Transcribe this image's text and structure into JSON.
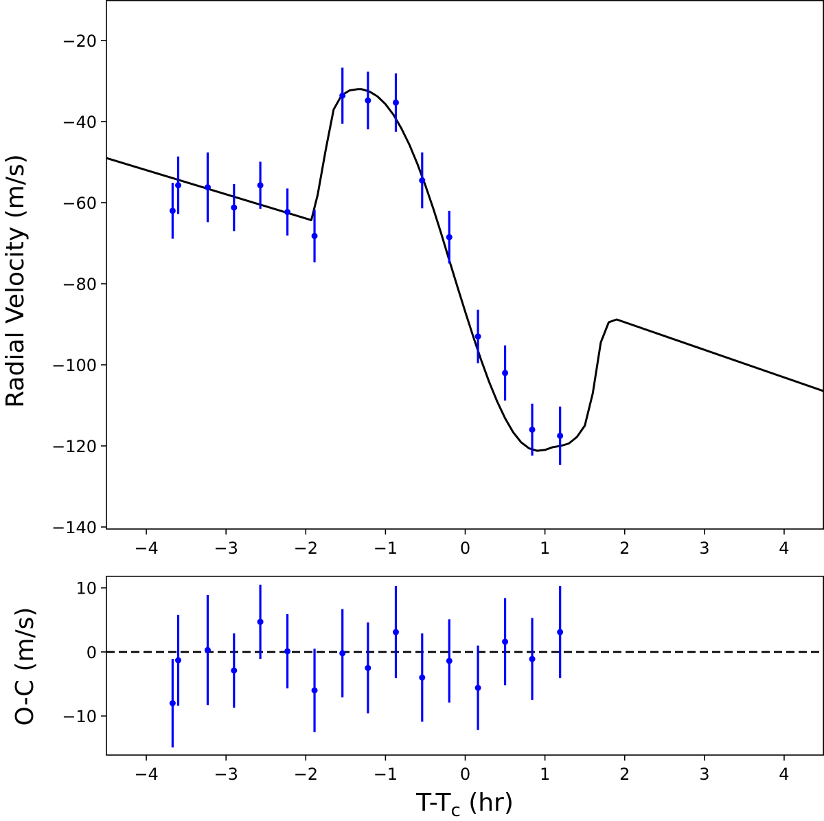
{
  "chart_data": [
    {
      "type": "scatter",
      "panel": "top",
      "ylabel": "Radial Velocity (m/s)",
      "xlim": [
        -4.5,
        4.5
      ],
      "ylim": [
        -140.5,
        -10
      ],
      "grid": false,
      "x_ticks": [
        -4,
        -3,
        -2,
        -1,
        0,
        1,
        2,
        3,
        4
      ],
      "x_tick_labels": [
        "−4",
        "−3",
        "−2",
        "−1",
        "0",
        "1",
        "2",
        "3",
        "4"
      ],
      "y_ticks": [
        -140,
        -120,
        -100,
        -80,
        -60,
        -40,
        -20
      ],
      "y_tick_labels": [
        "−140",
        "−120",
        "−100",
        "−80",
        "−60",
        "−40",
        "−20"
      ],
      "colors": {
        "points": "#0000ff",
        "model": "#000000"
      },
      "series": [
        {
          "kind": "errorbar-points",
          "x": [
            -3.67,
            -3.6,
            -3.23,
            -2.9,
            -2.57,
            -2.23,
            -1.89,
            -1.54,
            -1.22,
            -0.87,
            -0.54,
            -0.2,
            0.16,
            0.5,
            0.84,
            1.19
          ],
          "y": [
            -62.0,
            -55.7,
            -56.2,
            -61.2,
            -55.7,
            -62.3,
            -68.2,
            -33.6,
            -34.8,
            -35.3,
            -54.5,
            -68.5,
            -93.0,
            -102.0,
            -116.0,
            -117.5
          ],
          "yerr": [
            6.9,
            7.1,
            8.6,
            5.8,
            5.8,
            5.8,
            6.5,
            6.9,
            7.1,
            7.2,
            6.9,
            6.5,
            6.6,
            6.8,
            6.4,
            7.2
          ]
        },
        {
          "kind": "model-line",
          "x": [
            -4.5,
            -1.93,
            -1.85,
            -1.75,
            -1.65,
            -1.55,
            -1.45,
            -1.35,
            -1.3,
            -1.2,
            -1.1,
            -1.0,
            -0.9,
            -0.8,
            -0.7,
            -0.6,
            -0.5,
            -0.4,
            -0.3,
            -0.2,
            -0.1,
            0.0,
            0.1,
            0.2,
            0.3,
            0.4,
            0.5,
            0.6,
            0.7,
            0.8,
            0.9,
            1.0,
            1.1,
            1.2,
            1.3,
            1.4,
            1.5,
            1.6,
            1.7,
            1.8,
            1.9,
            4.5
          ],
          "y": [
            -49.0,
            -64.3,
            -58.0,
            -47.0,
            -37.0,
            -33.5,
            -32.3,
            -32.0,
            -32.0,
            -32.6,
            -33.8,
            -35.7,
            -38.3,
            -41.7,
            -45.7,
            -50.4,
            -55.7,
            -61.5,
            -67.7,
            -74.2,
            -80.6,
            -86.9,
            -93.0,
            -98.8,
            -104.2,
            -109.0,
            -113.2,
            -116.6,
            -119.1,
            -120.6,
            -121.2,
            -121.0,
            -120.3,
            -120.0,
            -119.4,
            -117.8,
            -115.0,
            -107.0,
            -94.5,
            -89.5,
            -88.8,
            -106.5
          ]
        }
      ]
    },
    {
      "type": "scatter",
      "panel": "bottom",
      "xlabel": "T-T",
      "xlabel_subscript": "c",
      "xlabel_suffix": " (hr)",
      "ylabel": "O-C (m/s)",
      "xlim": [
        -4.5,
        4.5
      ],
      "ylim": [
        -16.1,
        11.9
      ],
      "grid": false,
      "x_ticks": [
        -4,
        -3,
        -2,
        -1,
        0,
        1,
        2,
        3,
        4
      ],
      "x_tick_labels": [
        "−4",
        "−3",
        "−2",
        "−1",
        "0",
        "1",
        "2",
        "3",
        "4"
      ],
      "y_ticks": [
        -10,
        0,
        10
      ],
      "y_tick_labels": [
        "−10",
        "0",
        "10"
      ],
      "colors": {
        "points": "#0000ff",
        "zero_line": "#000000"
      },
      "zero_line": 0,
      "series": [
        {
          "kind": "errorbar-points",
          "x": [
            -3.67,
            -3.6,
            -3.23,
            -2.9,
            -2.57,
            -2.23,
            -1.89,
            -1.54,
            -1.22,
            -0.87,
            -0.54,
            -0.2,
            0.16,
            0.5,
            0.84,
            1.19
          ],
          "y": [
            -8.0,
            -1.3,
            0.3,
            -2.9,
            4.7,
            0.1,
            -6.0,
            -0.2,
            -2.5,
            3.1,
            -4.0,
            -1.4,
            -5.6,
            1.6,
            -1.1,
            3.1
          ],
          "yerr": [
            6.9,
            7.1,
            8.6,
            5.8,
            5.8,
            5.8,
            6.5,
            6.9,
            7.1,
            7.2,
            6.9,
            6.5,
            6.6,
            6.8,
            6.4,
            7.2
          ]
        }
      ]
    }
  ]
}
